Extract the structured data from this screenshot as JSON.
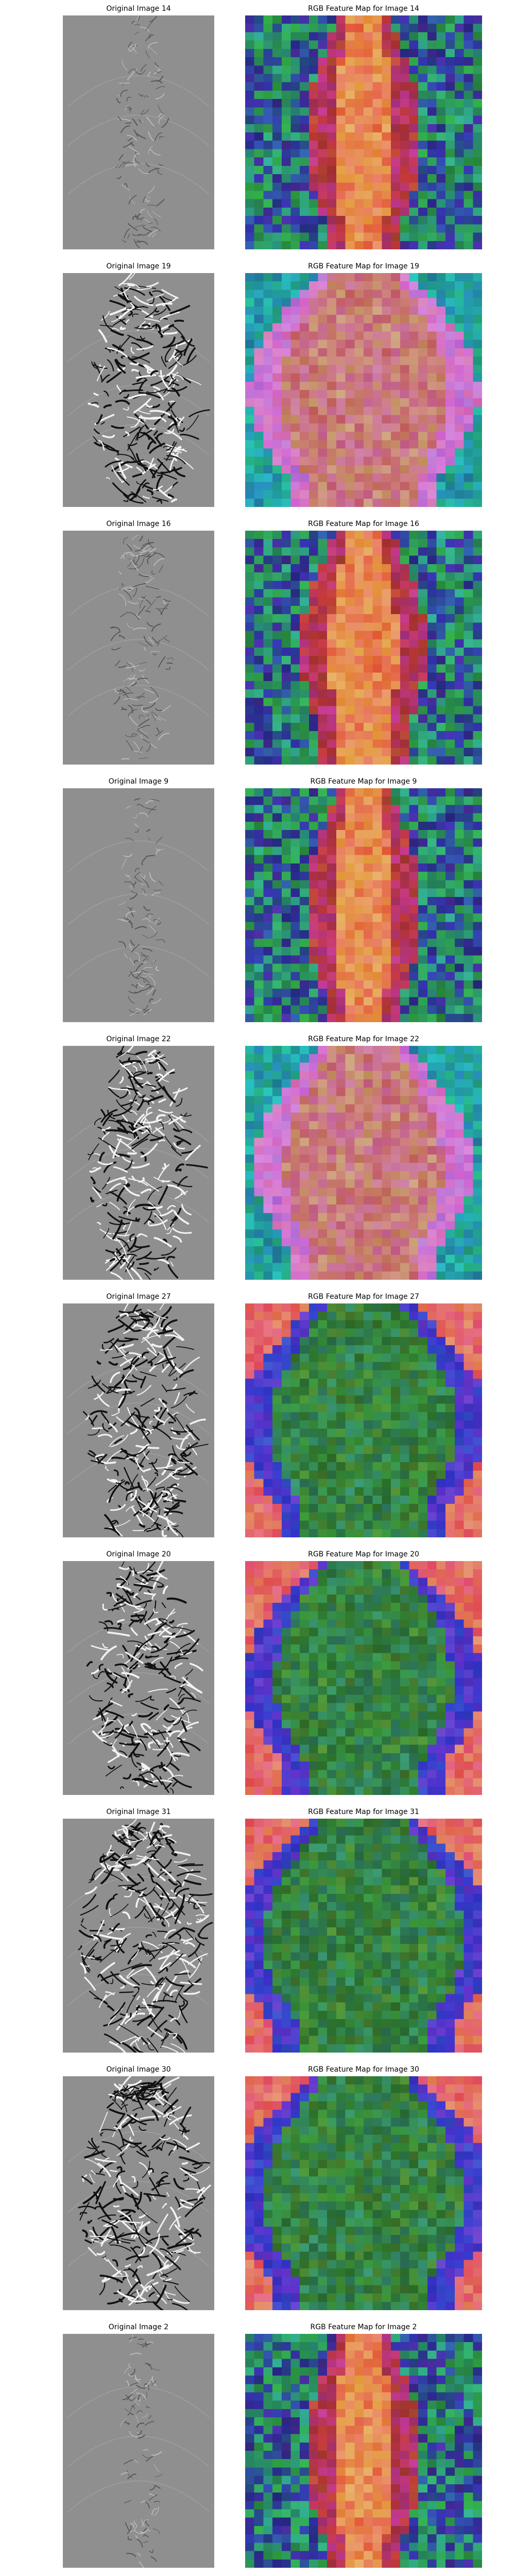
{
  "figure": {
    "rows": [
      {
        "original_title": "Original Image 14",
        "feature_title": "RGB Feature Map for Image 14",
        "density": 0.25,
        "palette": "cool"
      },
      {
        "original_title": "Original Image 19",
        "feature_title": "RGB Feature Map for Image 19",
        "density": 0.85,
        "palette": "teal"
      },
      {
        "original_title": "Original Image 16",
        "feature_title": "RGB Feature Map for Image 16",
        "density": 0.35,
        "palette": "cool"
      },
      {
        "original_title": "Original Image 9",
        "feature_title": "RGB Feature Map for Image 9",
        "density": 0.2,
        "palette": "cool"
      },
      {
        "original_title": "Original Image 22",
        "feature_title": "RGB Feature Map for Image 22",
        "density": 0.8,
        "palette": "teal"
      },
      {
        "original_title": "Original Image 27",
        "feature_title": "RGB Feature Map for Image 27",
        "density": 0.9,
        "palette": "warm"
      },
      {
        "original_title": "Original Image 20",
        "feature_title": "RGB Feature Map for Image 20",
        "density": 0.85,
        "palette": "warm"
      },
      {
        "original_title": "Original Image 31",
        "feature_title": "RGB Feature Map for Image 31",
        "density": 1.0,
        "palette": "warm"
      },
      {
        "original_title": "Original Image 30",
        "feature_title": "RGB Feature Map for Image 30",
        "density": 1.0,
        "palette": "warm"
      },
      {
        "original_title": "Original Image 2",
        "feature_title": "RGB Feature Map for Image 2",
        "density": 0.15,
        "palette": "cool"
      }
    ]
  }
}
